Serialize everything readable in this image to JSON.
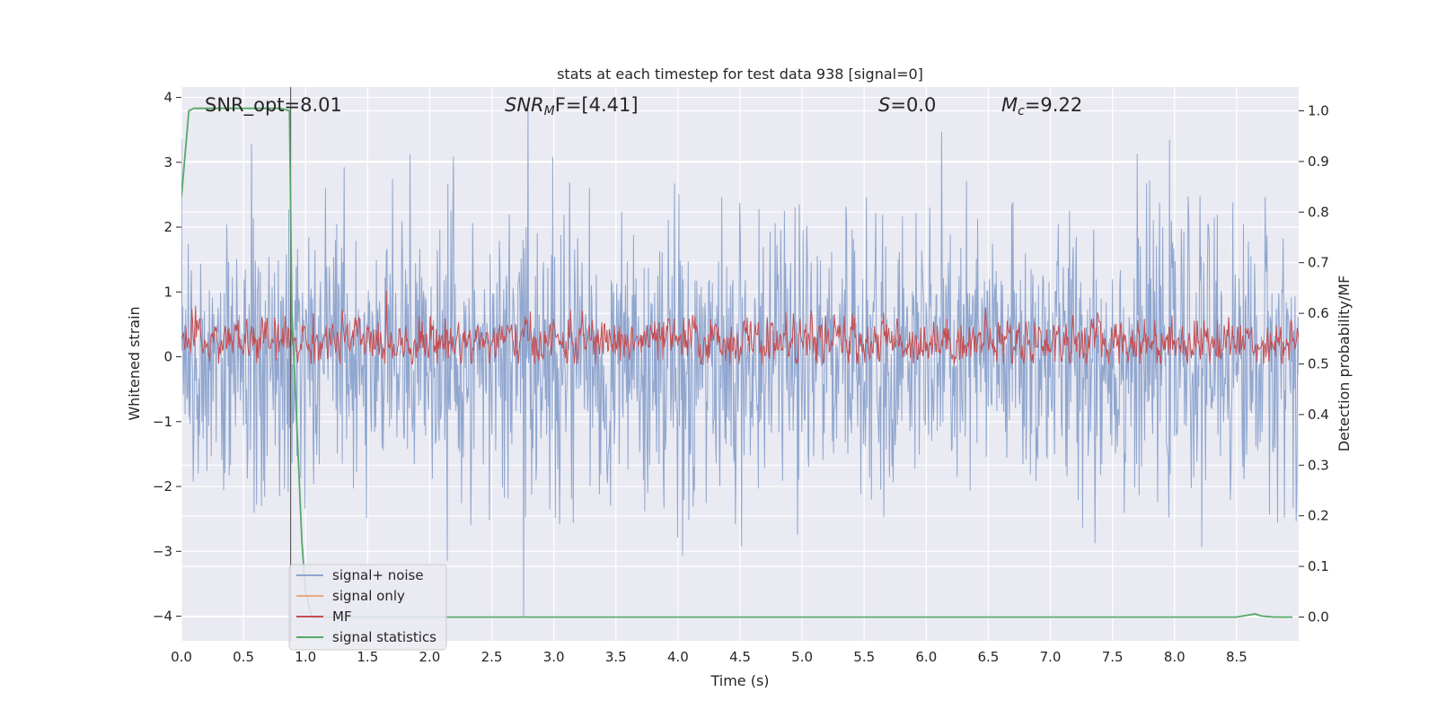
{
  "chart_data": {
    "type": "line",
    "title": "stats at each timestep for test data 938 [signal=0]",
    "xlabel": "Time (s)",
    "ylabel": "Whitened strain",
    "y2label": "Detection probability/MF",
    "xlim": [
      0.0,
      9.0
    ],
    "ylim": [
      -4.38,
      4.16
    ],
    "y2lim": [
      -0.047,
      1.047
    ],
    "x_ticks": [
      "0.0",
      "0.5",
      "1.0",
      "1.5",
      "2.0",
      "2.5",
      "3.0",
      "3.5",
      "4.0",
      "4.5",
      "5.0",
      "5.5",
      "6.0",
      "6.5",
      "7.0",
      "7.5",
      "8.0",
      "8.5"
    ],
    "y_ticks": [
      "4",
      "3",
      "2",
      "1",
      "0",
      "−1",
      "−2",
      "−3",
      "−4"
    ],
    "y2_ticks": [
      "1.0",
      "0.9",
      "0.8",
      "0.7",
      "0.6",
      "0.5",
      "0.4",
      "0.3",
      "0.2",
      "0.1",
      "0.0"
    ],
    "annotations": {
      "snr_opt": "SNR_opt=8.01",
      "snr_mf_base": "SNR",
      "snr_mf_sub": "M",
      "snr_mf_rest": "F=[4.41]",
      "s_name": "S",
      "s_rest": "=0.0",
      "mc_base": "M",
      "mc_sub": "c",
      "mc_rest": "=9.22"
    },
    "vertical_line_x": 0.88,
    "series": [
      {
        "name": "signal+ noise",
        "color": "#8fa6cf",
        "description_range": [
          -4.0,
          3.8
        ]
      },
      {
        "name": "signal only",
        "color": "#e8a986"
      },
      {
        "name": "MF",
        "color": "#c44e52",
        "axis": "right"
      },
      {
        "name": "signal statistics",
        "color": "#55a868",
        "axis": "right",
        "x": [
          0.0,
          0.06,
          0.1,
          0.2,
          0.4,
          0.6,
          0.8,
          0.87,
          0.89,
          0.93,
          0.97,
          1.0,
          1.05,
          1.2,
          3.0,
          5.0,
          7.0,
          8.5,
          8.55,
          8.65,
          8.7,
          8.8,
          8.95
        ],
        "values": [
          0.83,
          1.0,
          1.005,
          1.005,
          1.005,
          1.005,
          1.005,
          1.0,
          0.6,
          0.38,
          0.15,
          0.05,
          0.0,
          0.0,
          0.0,
          0.0,
          0.0,
          0.0,
          0.002,
          0.006,
          0.002,
          0.0,
          0.0
        ]
      }
    ],
    "legend_position": "lower-left",
    "grid": true
  }
}
